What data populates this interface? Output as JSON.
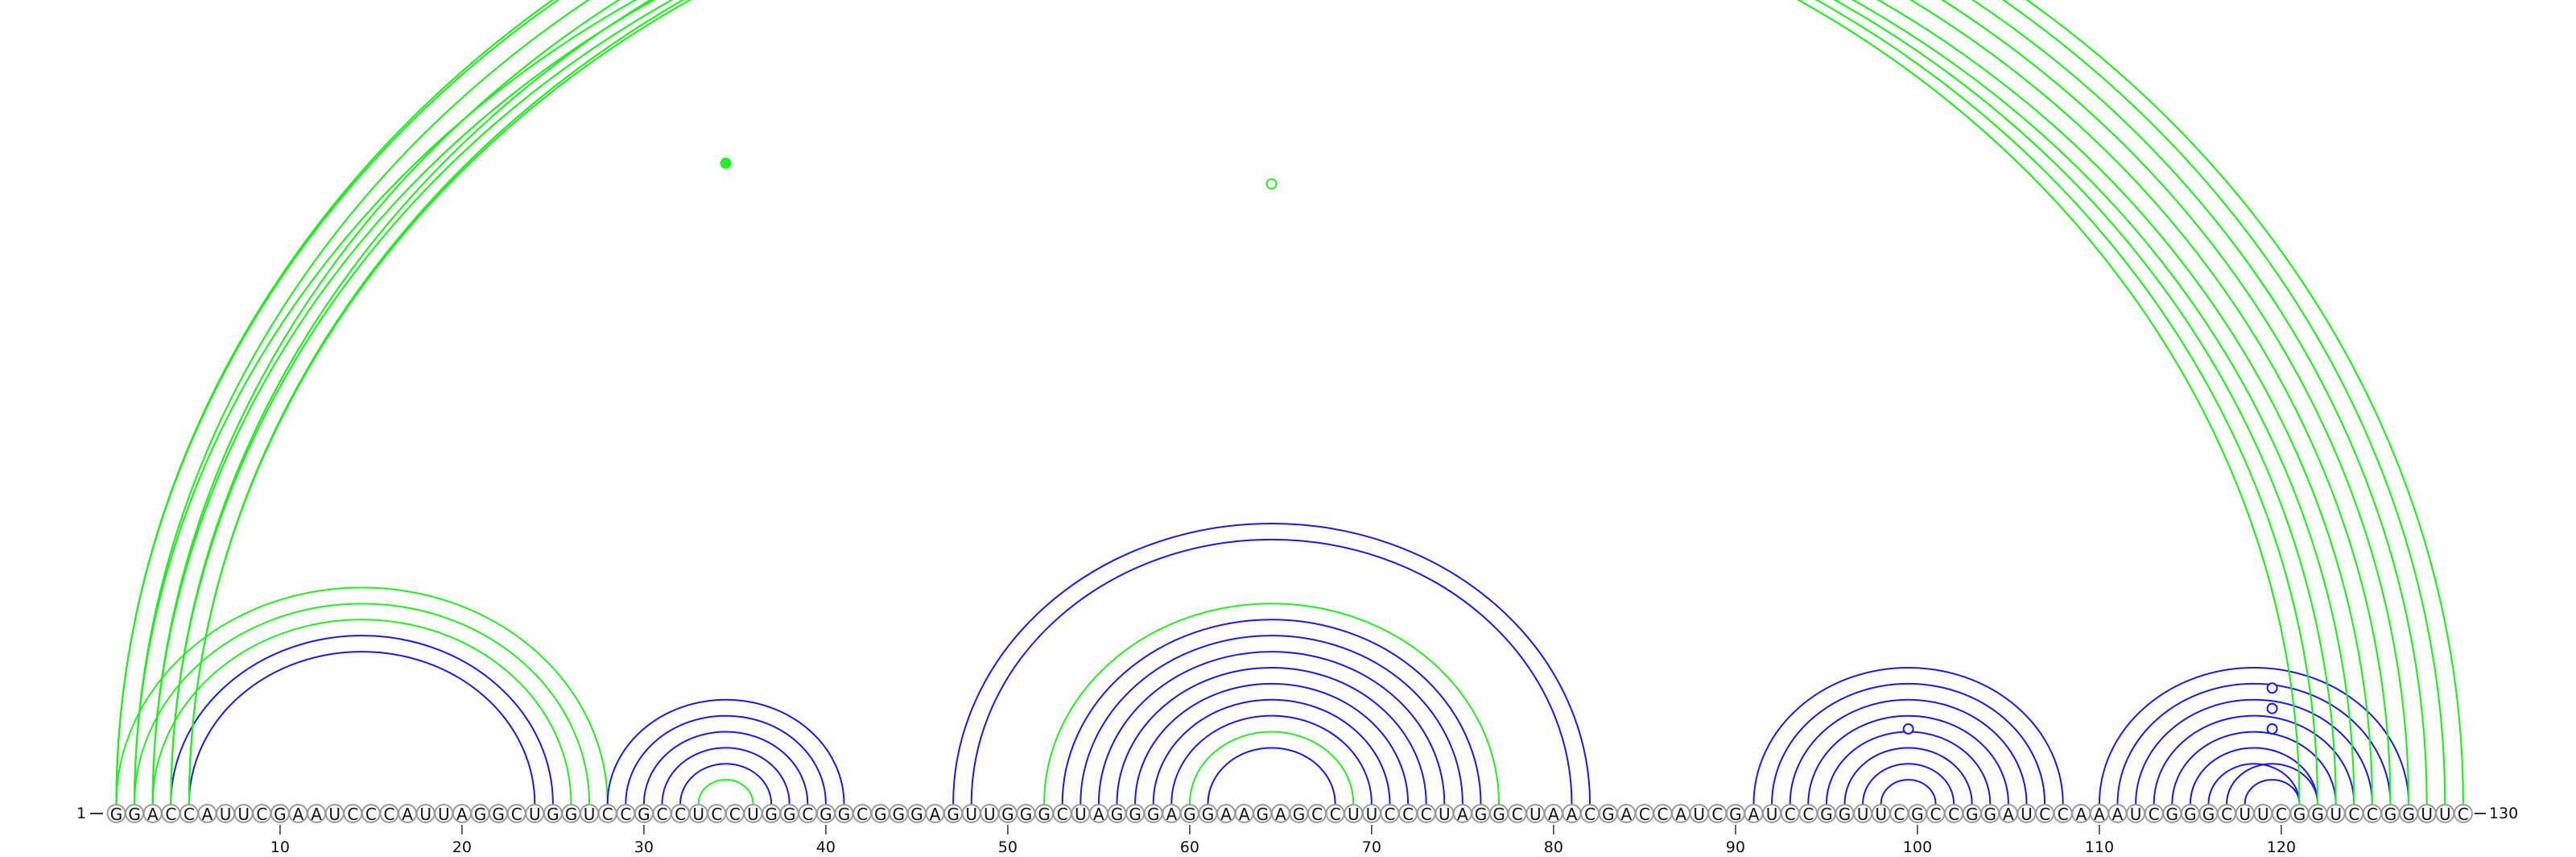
{
  "sequence": "GGACCAUUCGAAUCCCAUUAGGCUGGUCCGCCUCCUGGCGGCGGGAGUUGGGCUAGGGAGGAAGAGCCUUCCCUAGGCUAACGACCAUCGAUCCGGUUCGCCGGAUCCAAAUCGGGCUUCGGUCCGGUUC",
  "start_label": "1",
  "end_label": "130",
  "ticks": [
    10,
    20,
    30,
    40,
    50,
    60,
    70,
    80,
    90,
    100,
    110,
    120
  ],
  "colors": {
    "blue": "#1a1ae6",
    "green": "#22ee22"
  },
  "arcs": [
    {
      "i": 5,
      "j": 24,
      "color": "blue",
      "width": 2
    },
    {
      "i": 4,
      "j": 25,
      "color": "blue",
      "width": 2
    },
    {
      "i": 3,
      "j": 26,
      "color": "green",
      "width": 2
    },
    {
      "i": 2,
      "j": 27,
      "color": "green",
      "width": 2
    },
    {
      "i": 1,
      "j": 28,
      "color": "green",
      "width": 2
    },
    {
      "i": 28,
      "j": 41,
      "color": "blue",
      "width": 2
    },
    {
      "i": 29,
      "j": 40,
      "color": "blue",
      "width": 2
    },
    {
      "i": 30,
      "j": 39,
      "color": "blue",
      "width": 2
    },
    {
      "i": 31,
      "j": 38,
      "color": "blue",
      "width": 2
    },
    {
      "i": 32,
      "j": 37,
      "color": "blue",
      "width": 2
    },
    {
      "i": 33,
      "j": 36,
      "color": "green",
      "width": 2
    },
    {
      "i": 47,
      "j": 82,
      "color": "blue",
      "width": 2
    },
    {
      "i": 48,
      "j": 81,
      "color": "blue",
      "width": 2
    },
    {
      "i": 52,
      "j": 77,
      "color": "green",
      "width": 2
    },
    {
      "i": 53,
      "j": 76,
      "color": "blue",
      "width": 2
    },
    {
      "i": 54,
      "j": 75,
      "color": "blue",
      "width": 2
    },
    {
      "i": 55,
      "j": 74,
      "color": "blue",
      "width": 2
    },
    {
      "i": 56,
      "j": 73,
      "color": "blue",
      "width": 2
    },
    {
      "i": 57,
      "j": 72,
      "color": "blue",
      "width": 2
    },
    {
      "i": 58,
      "j": 71,
      "color": "blue",
      "width": 2
    },
    {
      "i": 59,
      "j": 70,
      "color": "blue",
      "width": 2
    },
    {
      "i": 60,
      "j": 69,
      "color": "green",
      "width": 2
    },
    {
      "i": 61,
      "j": 68,
      "color": "blue",
      "width": 2
    },
    {
      "i": 91,
      "j": 108,
      "color": "blue",
      "width": 2
    },
    {
      "i": 92,
      "j": 107,
      "color": "blue",
      "width": 2
    },
    {
      "i": 93,
      "j": 106,
      "color": "blue",
      "width": 2
    },
    {
      "i": 94,
      "j": 105,
      "color": "blue",
      "width": 2
    },
    {
      "i": 95,
      "j": 104,
      "color": "blue",
      "width": 2
    },
    {
      "i": 96,
      "j": 103,
      "color": "blue",
      "width": 2
    },
    {
      "i": 97,
      "j": 102,
      "color": "blue",
      "width": 2
    },
    {
      "i": 98,
      "j": 101,
      "color": "blue",
      "width": 2
    },
    {
      "i": 110,
      "j": 127,
      "color": "blue",
      "width": 2
    },
    {
      "i": 111,
      "j": 126,
      "color": "blue",
      "width": 2
    },
    {
      "i": 112,
      "j": 125,
      "color": "blue",
      "width": 2
    },
    {
      "i": 113,
      "j": 124,
      "color": "blue",
      "width": 2
    },
    {
      "i": 114,
      "j": 123,
      "color": "blue",
      "width": 2
    },
    {
      "i": 115,
      "j": 122,
      "color": "blue",
      "width": 2
    },
    {
      "i": 116,
      "j": 121,
      "color": "blue",
      "width": 2
    },
    {
      "i": 117,
      "j": 122,
      "color": "blue",
      "width": 2
    },
    {
      "i": 118,
      "j": 121,
      "color": "blue",
      "width": 2
    },
    {
      "i": 1,
      "j": 130,
      "color": "green",
      "width": 2.2
    },
    {
      "i": 1,
      "j": 129,
      "color": "green",
      "width": 2.2
    },
    {
      "i": 2,
      "j": 128,
      "color": "green",
      "width": 2.2
    },
    {
      "i": 3,
      "j": 127,
      "color": "green",
      "width": 2.2
    },
    {
      "i": 4,
      "j": 126,
      "color": "green",
      "width": 2.2
    },
    {
      "i": 5,
      "j": 125,
      "color": "green",
      "width": 2.2
    },
    {
      "i": 5,
      "j": 124,
      "color": "green",
      "width": 2.2
    },
    {
      "i": 4,
      "j": 123,
      "color": "green",
      "width": 2.2
    },
    {
      "i": 3,
      "j": 122,
      "color": "green",
      "width": 2.2
    },
    {
      "i": 2,
      "j": 121,
      "color": "green",
      "width": 2.2
    }
  ],
  "markers": [
    {
      "pos": 34.5,
      "color": "green",
      "filled": true,
      "level": 0.62
    },
    {
      "pos": 64.5,
      "color": "green",
      "filled": true,
      "level": 0.95
    },
    {
      "pos": 64.5,
      "color": "green",
      "filled": false,
      "level": 0.6
    },
    {
      "pos": 65.5,
      "color": "green",
      "filled": false,
      "level": 0.985
    },
    {
      "pos": 99.5,
      "color": "blue",
      "filled": false,
      "level": 0.55
    },
    {
      "pos": 119.5,
      "color": "blue",
      "filled": false,
      "level": 0.85
    },
    {
      "pos": 119.5,
      "color": "blue",
      "filled": false,
      "level": 0.7
    },
    {
      "pos": 119.5,
      "color": "blue",
      "filled": false,
      "level": 0.55
    }
  ]
}
